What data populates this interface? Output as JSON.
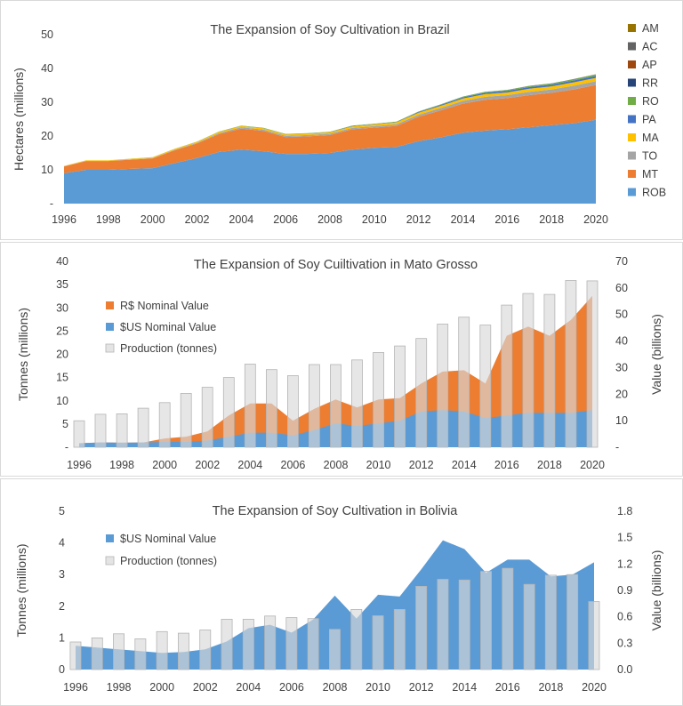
{
  "chart_data": [
    {
      "type": "area",
      "stacked": true,
      "title": "The Expansion of Soy Cultivation in Brazil",
      "ylabel": "Hectares   (millions)",
      "ylim": [
        0,
        50
      ],
      "yticks": [
        "-",
        "10",
        "20",
        "30",
        "40",
        "50"
      ],
      "xticks": [
        "1996",
        "1998",
        "2000",
        "2002",
        "2004",
        "2006",
        "2008",
        "2010",
        "2012",
        "2014",
        "2016",
        "2018",
        "2020"
      ],
      "x": [
        1996,
        1997,
        1998,
        1999,
        2000,
        2001,
        2002,
        2003,
        2004,
        2005,
        2006,
        2007,
        2008,
        2009,
        2010,
        2011,
        2012,
        2013,
        2014,
        2015,
        2016,
        2017,
        2018,
        2019,
        2020
      ],
      "legend_position": "right",
      "series": [
        {
          "name": "ROB",
          "color": "#5b9bd5",
          "values": [
            9.0,
            10.0,
            10.0,
            10.3,
            10.5,
            12.0,
            13.5,
            15.3,
            16.0,
            15.5,
            14.7,
            14.7,
            15.0,
            16.0,
            16.5,
            16.8,
            18.5,
            19.6,
            21.0,
            21.6,
            22.0,
            22.6,
            23.2,
            23.8,
            24.8
          ]
        },
        {
          "name": "MT",
          "color": "#ed7d31",
          "values": [
            2.0,
            2.6,
            2.6,
            2.7,
            2.9,
            3.8,
            4.3,
            5.3,
            6.2,
            6.0,
            5.0,
            5.2,
            5.3,
            6.0,
            6.0,
            6.2,
            7.2,
            8.0,
            8.6,
            9.1,
            9.2,
            9.5,
            9.6,
            10.0,
            10.3
          ]
        },
        {
          "name": "TO",
          "color": "#a5a5a5",
          "values": [
            0.05,
            0.06,
            0.07,
            0.08,
            0.1,
            0.15,
            0.2,
            0.3,
            0.4,
            0.4,
            0.35,
            0.38,
            0.4,
            0.4,
            0.45,
            0.5,
            0.6,
            0.7,
            0.8,
            0.9,
            0.9,
            1.0,
            1.0,
            1.1,
            1.1
          ]
        },
        {
          "name": "MA",
          "color": "#ffc000",
          "values": [
            0.1,
            0.15,
            0.16,
            0.18,
            0.2,
            0.25,
            0.3,
            0.35,
            0.35,
            0.35,
            0.4,
            0.4,
            0.4,
            0.45,
            0.5,
            0.55,
            0.6,
            0.65,
            0.7,
            0.8,
            0.8,
            0.9,
            0.9,
            1.0,
            1.0
          ]
        },
        {
          "name": "PA",
          "color": "#4472c4",
          "values": [
            0.0,
            0.0,
            0.0,
            0.0,
            0.0,
            0.0,
            0.01,
            0.02,
            0.05,
            0.07,
            0.08,
            0.08,
            0.08,
            0.1,
            0.1,
            0.12,
            0.2,
            0.25,
            0.35,
            0.4,
            0.45,
            0.5,
            0.5,
            0.55,
            0.6
          ]
        },
        {
          "name": "RO",
          "color": "#70ad47",
          "values": [
            0.0,
            0.01,
            0.01,
            0.02,
            0.03,
            0.05,
            0.06,
            0.07,
            0.08,
            0.09,
            0.1,
            0.1,
            0.1,
            0.12,
            0.12,
            0.13,
            0.14,
            0.15,
            0.2,
            0.24,
            0.27,
            0.3,
            0.33,
            0.35,
            0.4
          ]
        },
        {
          "name": "RR",
          "color": "#264478",
          "values": [
            0.0,
            0.0,
            0.0,
            0.0,
            0.0,
            0.0,
            0.0,
            0.0,
            0.0,
            0.0,
            0.0,
            0.0,
            0.0,
            0.0,
            0.0,
            0.0,
            0.01,
            0.02,
            0.03,
            0.03,
            0.03,
            0.04,
            0.04,
            0.04,
            0.05
          ]
        },
        {
          "name": "AP",
          "color": "#9e480e",
          "values": [
            0.0,
            0.0,
            0.0,
            0.0,
            0.0,
            0.0,
            0.0,
            0.0,
            0.0,
            0.0,
            0.0,
            0.0,
            0.0,
            0.0,
            0.0,
            0.0,
            0.0,
            0.01,
            0.01,
            0.02,
            0.02,
            0.02,
            0.02,
            0.02,
            0.02
          ]
        },
        {
          "name": "AC",
          "color": "#636363",
          "values": [
            0.0,
            0.0,
            0.0,
            0.0,
            0.0,
            0.0,
            0.0,
            0.0,
            0.0,
            0.0,
            0.0,
            0.0,
            0.0,
            0.0,
            0.0,
            0.0,
            0.0,
            0.0,
            0.0,
            0.0,
            0.0,
            0.0,
            0.0,
            0.0,
            0.01
          ]
        },
        {
          "name": "AM",
          "color": "#997300",
          "values": [
            0.0,
            0.0,
            0.0,
            0.0,
            0.0,
            0.0,
            0.0,
            0.0,
            0.0,
            0.0,
            0.0,
            0.0,
            0.0,
            0.0,
            0.0,
            0.0,
            0.0,
            0.0,
            0.0,
            0.0,
            0.0,
            0.0,
            0.0,
            0.0,
            0.01
          ]
        }
      ]
    },
    {
      "type": "bar+area",
      "title": "The Expansion of Soy Cuiltivation in Mato Grosso",
      "ylabel": "Tonnes (millions)",
      "y2label": "Value    (billions)",
      "ylim": [
        0,
        40
      ],
      "y2lim": [
        0,
        70
      ],
      "yticks": [
        "-",
        "5",
        "10",
        "15",
        "20",
        "25",
        "30",
        "35",
        "40"
      ],
      "y2ticks": [
        "-",
        "10",
        "20",
        "30",
        "40",
        "50",
        "60",
        "70"
      ],
      "xticks": [
        "1996",
        "1998",
        "2000",
        "2002",
        "2004",
        "2006",
        "2008",
        "2010",
        "2012",
        "2014",
        "2016",
        "2018",
        "2020"
      ],
      "x": [
        1996,
        1997,
        1998,
        1999,
        2000,
        2001,
        2002,
        2003,
        2004,
        2005,
        2006,
        2007,
        2008,
        2009,
        2010,
        2011,
        2012,
        2013,
        2014,
        2015,
        2016,
        2017,
        2018,
        2019,
        2020
      ],
      "legend_position": "top-left",
      "series": [
        {
          "name": "R$ Nominal Value",
          "axis": "right",
          "kind": "area",
          "color": "#ed7d31",
          "values": [
            1.5,
            1.8,
            1.7,
            1.8,
            3.3,
            4.0,
            6.0,
            12.0,
            16.5,
            16.5,
            10.0,
            14.5,
            18.0,
            15.0,
            18.0,
            18.5,
            24.0,
            28.5,
            29.0,
            24.0,
            42.0,
            45.5,
            42.0,
            48.0,
            57.0
          ]
        },
        {
          "name": "$US Nominal Value",
          "axis": "right",
          "kind": "area",
          "color": "#5b9bd5",
          "values": [
            1.5,
            1.8,
            1.7,
            1.8,
            2.0,
            2.0,
            2.5,
            4.0,
            5.5,
            5.5,
            4.5,
            6.5,
            9.0,
            8.0,
            9.0,
            10.0,
            13.5,
            14.0,
            13.5,
            11.0,
            12.0,
            13.0,
            13.0,
            13.0,
            14.0
          ]
        },
        {
          "name": "Production (tonnes)",
          "axis": "left",
          "kind": "bar",
          "color": "#d9d9d9",
          "values": [
            5.7,
            7.1,
            7.2,
            8.4,
            9.6,
            11.6,
            12.9,
            15.0,
            17.9,
            16.7,
            15.4,
            17.8,
            17.8,
            18.8,
            20.4,
            21.8,
            23.4,
            26.5,
            28.0,
            26.3,
            30.6,
            33.1,
            32.9,
            35.9,
            35.8
          ]
        }
      ]
    },
    {
      "type": "bar+area",
      "title": "The Expansion of Soy Cultivation in Bolivia",
      "ylabel": "Tonnes (millions)",
      "y2label": "Value    (billions)",
      "ylim": [
        0,
        5
      ],
      "y2lim": [
        0,
        1.8
      ],
      "yticks": [
        "0",
        "1",
        "2",
        "3",
        "4",
        "5"
      ],
      "y2ticks": [
        "0.0",
        "0.3",
        "0.6",
        "0.9",
        "1.2",
        "1.5",
        "1.8"
      ],
      "xticks": [
        "1996",
        "1998",
        "2000",
        "2002",
        "2004",
        "2006",
        "2008",
        "2010",
        "2012",
        "2014",
        "2016",
        "2018",
        "2020"
      ],
      "x": [
        1996,
        1997,
        1998,
        1999,
        2000,
        2001,
        2002,
        2003,
        2004,
        2005,
        2006,
        2007,
        2008,
        2009,
        2010,
        2011,
        2012,
        2013,
        2014,
        2015,
        2016,
        2017,
        2018,
        2019,
        2020
      ],
      "legend_position": "top-left",
      "series": [
        {
          "name": "$US Nominal Value",
          "axis": "right",
          "kind": "area",
          "color": "#5b9bd5",
          "values": [
            0.27,
            0.25,
            0.23,
            0.21,
            0.19,
            0.2,
            0.23,
            0.32,
            0.47,
            0.51,
            0.42,
            0.57,
            0.84,
            0.58,
            0.85,
            0.83,
            1.14,
            1.47,
            1.37,
            1.1,
            1.25,
            1.25,
            1.06,
            1.08,
            1.22
          ]
        },
        {
          "name": "Production (tonnes)",
          "axis": "left",
          "kind": "bar",
          "color": "#d9d9d9",
          "values": [
            0.87,
            1.0,
            1.13,
            0.97,
            1.2,
            1.15,
            1.25,
            1.59,
            1.59,
            1.69,
            1.64,
            1.61,
            1.27,
            1.9,
            1.7,
            1.9,
            2.63,
            2.85,
            2.83,
            3.1,
            3.2,
            2.69,
            2.98,
            3.0,
            2.15
          ]
        }
      ]
    }
  ]
}
